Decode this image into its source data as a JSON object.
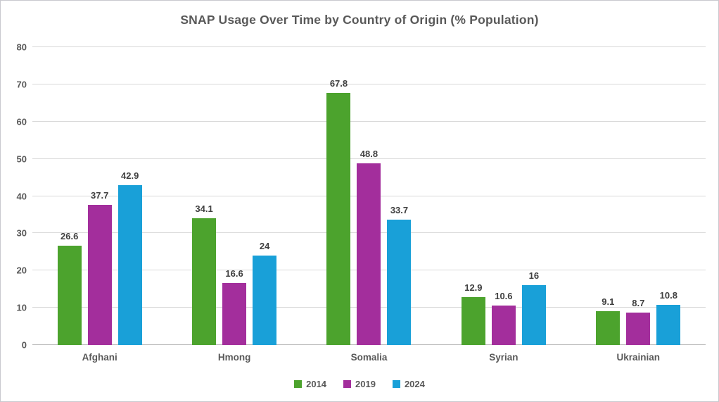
{
  "chart_data": {
    "type": "bar",
    "title": "SNAP Usage Over Time by Country of Origin (% Population)",
    "categories": [
      "Afghani",
      "Hmong",
      "Somalia",
      "Syrian",
      "Ukrainian"
    ],
    "series": [
      {
        "name": "2014",
        "color": "#4CA32D",
        "values": [
          26.6,
          34.1,
          67.8,
          12.9,
          9.1
        ]
      },
      {
        "name": "2019",
        "color": "#A32E9C",
        "values": [
          37.7,
          16.6,
          48.8,
          10.6,
          8.7
        ]
      },
      {
        "name": "2024",
        "color": "#19A0D8",
        "values": [
          42.9,
          24,
          33.7,
          16,
          10.8
        ]
      }
    ],
    "xlabel": "",
    "ylabel": "",
    "ylim": [
      0,
      80
    ],
    "yticks": [
      0,
      10,
      20,
      30,
      40,
      50,
      60,
      70,
      80
    ],
    "grid": "horizontal",
    "legend_position": "bottom",
    "gridline_color": "#D9D9D9",
    "axis_line_color": "#BFBFBF",
    "title_color": "#595959",
    "label_color": "#404040"
  }
}
